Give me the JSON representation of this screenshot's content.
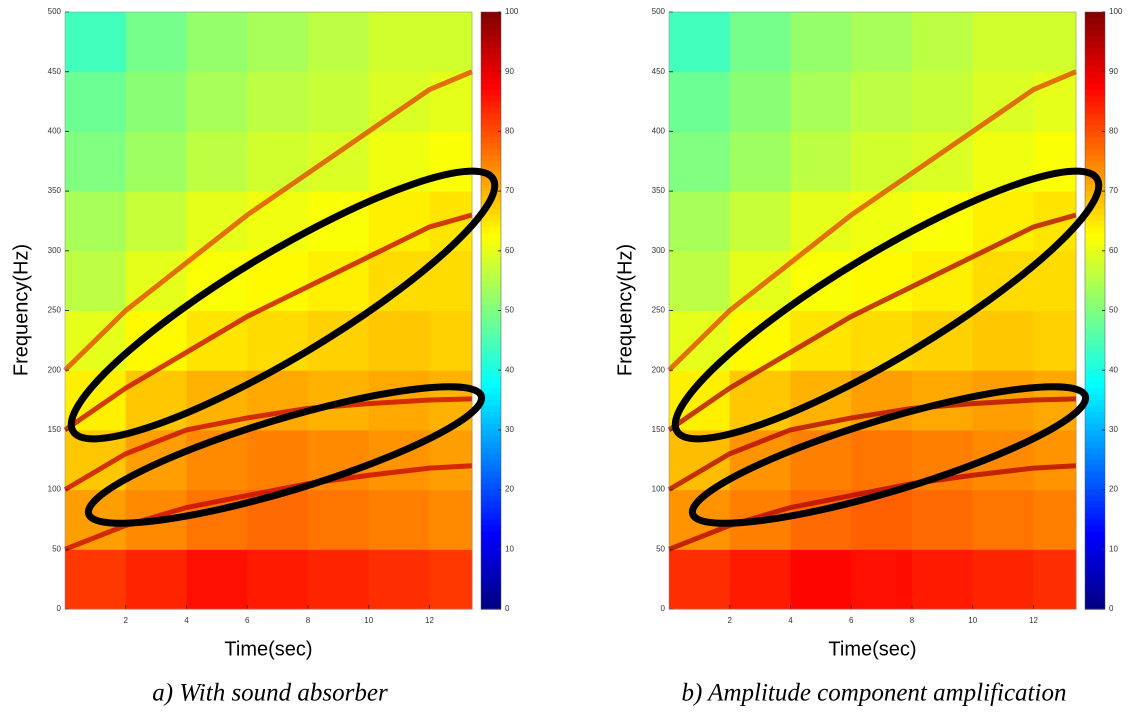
{
  "chart_data": [
    {
      "type": "heatmap",
      "title": "a) With sound absorber",
      "x_label": "Time(sec)",
      "y_label": "Frequency(Hz)",
      "x_bins": [
        0,
        2,
        4,
        6,
        8,
        10,
        12,
        13.4
      ],
      "y_bins": [
        0,
        50,
        100,
        150,
        200,
        250,
        300,
        350,
        400,
        450,
        500
      ],
      "z": [
        [
          82,
          84,
          86,
          85,
          84,
          83,
          82
        ],
        [
          72,
          74,
          76,
          77,
          76,
          75,
          74
        ],
        [
          68,
          72,
          74,
          75,
          74,
          73,
          72
        ],
        [
          64,
          68,
          70,
          71,
          70,
          71,
          70
        ],
        [
          60,
          63,
          65,
          66,
          67,
          68,
          67
        ],
        [
          56,
          60,
          62,
          63,
          64,
          66,
          66
        ],
        [
          54,
          57,
          60,
          61,
          62,
          64,
          65
        ],
        [
          50,
          53,
          56,
          58,
          59,
          61,
          62
        ],
        [
          48,
          51,
          54,
          56,
          57,
          59,
          60
        ],
        [
          44,
          49,
          52,
          54,
          56,
          58,
          58
        ]
      ],
      "series": [
        {
          "color": "#c40000",
          "x": [
            0,
            2,
            4,
            6,
            8,
            10,
            12,
            13.4
          ],
          "values": [
            50,
            70,
            85,
            95,
            105,
            112,
            118,
            120
          ]
        },
        {
          "color": "#c40000",
          "x": [
            0,
            2,
            4,
            6,
            8,
            10,
            12,
            13.4
          ],
          "values": [
            100,
            130,
            150,
            160,
            168,
            172,
            175,
            176
          ]
        },
        {
          "color": "#c40000",
          "x": [
            0,
            2,
            4,
            6,
            8,
            10,
            12,
            13.4
          ],
          "values": [
            150,
            185,
            215,
            245,
            270,
            295,
            320,
            330
          ]
        },
        {
          "color": "#e04000",
          "x": [
            0,
            2,
            4,
            6,
            8,
            10,
            12,
            13.4
          ],
          "values": [
            200,
            250,
            290,
            330,
            365,
            400,
            435,
            450
          ]
        }
      ],
      "xlim": [
        0,
        13.4
      ],
      "xticks": [
        2,
        4,
        6,
        8,
        10,
        12
      ],
      "ylim": [
        0,
        500
      ],
      "yticks": [
        0,
        50,
        100,
        150,
        200,
        250,
        300,
        350,
        400,
        450,
        500
      ],
      "clim": [
        0,
        100
      ],
      "cticks": [
        0,
        10,
        20,
        30,
        40,
        50,
        60,
        70,
        80,
        90,
        100
      ]
    },
    {
      "type": "heatmap",
      "title": "b) Amplitude component amplification",
      "x_label": "Time(sec)",
      "y_label": "Frequency(Hz)",
      "x_bins": [
        0,
        2,
        4,
        6,
        8,
        10,
        12,
        13.4
      ],
      "y_bins": [
        0,
        50,
        100,
        150,
        200,
        250,
        300,
        350,
        400,
        450,
        500
      ],
      "z": [
        [
          83,
          85,
          87,
          86,
          85,
          84,
          83
        ],
        [
          73,
          75,
          77,
          78,
          77,
          76,
          75
        ],
        [
          69,
          73,
          75,
          76,
          75,
          74,
          73
        ],
        [
          64,
          68,
          70,
          72,
          71,
          72,
          71
        ],
        [
          60,
          63,
          65,
          66,
          67,
          68,
          67
        ],
        [
          56,
          60,
          62,
          63,
          64,
          66,
          66
        ],
        [
          54,
          57,
          60,
          61,
          62,
          64,
          65
        ],
        [
          50,
          53,
          56,
          58,
          59,
          61,
          62
        ],
        [
          48,
          51,
          54,
          56,
          57,
          59,
          60
        ],
        [
          44,
          49,
          52,
          54,
          56,
          58,
          58
        ]
      ],
      "series": [
        {
          "color": "#b00000",
          "x": [
            0,
            2,
            4,
            6,
            8,
            10,
            12,
            13.4
          ],
          "values": [
            50,
            70,
            85,
            95,
            105,
            112,
            118,
            120
          ]
        },
        {
          "color": "#b00000",
          "x": [
            0,
            2,
            4,
            6,
            8,
            10,
            12,
            13.4
          ],
          "values": [
            100,
            130,
            150,
            160,
            168,
            172,
            175,
            176
          ]
        },
        {
          "color": "#b00000",
          "x": [
            0,
            2,
            4,
            6,
            8,
            10,
            12,
            13.4
          ],
          "values": [
            150,
            185,
            215,
            245,
            270,
            295,
            320,
            330
          ]
        },
        {
          "color": "#e04000",
          "x": [
            0,
            2,
            4,
            6,
            8,
            10,
            12,
            13.4
          ],
          "values": [
            200,
            250,
            290,
            330,
            365,
            400,
            435,
            450
          ]
        }
      ],
      "xlim": [
        0,
        13.4
      ],
      "xticks": [
        2,
        4,
        6,
        8,
        10,
        12
      ],
      "ylim": [
        0,
        500
      ],
      "yticks": [
        0,
        50,
        100,
        150,
        200,
        250,
        300,
        350,
        400,
        450,
        500
      ],
      "clim": [
        0,
        100
      ],
      "cticks": [
        0,
        10,
        20,
        30,
        40,
        50,
        60,
        70,
        80,
        90,
        100
      ]
    }
  ]
}
